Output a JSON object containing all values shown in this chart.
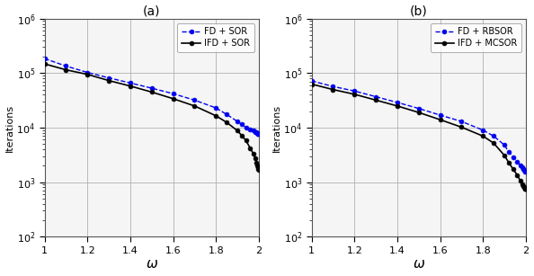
{
  "subplot_a": {
    "title": "(a)",
    "xlabel": "ω",
    "ylabel": "Iterations",
    "legend": [
      "FD + SOR",
      "IFD + SOR"
    ],
    "fd_sor_omega": [
      1.0,
      1.1,
      1.2,
      1.3,
      1.4,
      1.5,
      1.6,
      1.7,
      1.8,
      1.85,
      1.9,
      1.92,
      1.94,
      1.96,
      1.975,
      1.985,
      1.99,
      1.993,
      1.996,
      1.998
    ],
    "fd_sor_iter": [
      185000,
      135000,
      103000,
      82000,
      66000,
      53000,
      42000,
      32000,
      23000,
      17500,
      13000,
      11500,
      10000,
      9200,
      8800,
      8400,
      8200,
      8000,
      7800,
      7600
    ],
    "ifd_sor_omega": [
      1.0,
      1.1,
      1.2,
      1.3,
      1.4,
      1.5,
      1.6,
      1.7,
      1.8,
      1.85,
      1.9,
      1.92,
      1.94,
      1.96,
      1.975,
      1.985,
      1.99,
      1.993,
      1.996,
      1.998,
      1.999
    ],
    "ifd_sor_iter": [
      148000,
      115000,
      95000,
      73000,
      58000,
      45000,
      34000,
      25000,
      16500,
      12500,
      8800,
      7200,
      5800,
      4200,
      3300,
      2700,
      2300,
      2000,
      1850,
      1750,
      1700
    ]
  },
  "subplot_b": {
    "title": "(b)",
    "xlabel": "ω",
    "ylabel": "Iterations",
    "legend": [
      "FD + RBSOR",
      "IFD + MCSOR"
    ],
    "fd_rbsor_omega": [
      1.0,
      1.1,
      1.2,
      1.3,
      1.4,
      1.5,
      1.6,
      1.7,
      1.8,
      1.85,
      1.9,
      1.92,
      1.94,
      1.96,
      1.975,
      1.985,
      1.99,
      1.993,
      1.996,
      1.998
    ],
    "fd_rbsor_iter": [
      72000,
      57000,
      47000,
      37000,
      29000,
      22500,
      17000,
      13000,
      9000,
      7000,
      4800,
      3600,
      2900,
      2400,
      2050,
      1850,
      1750,
      1680,
      1620,
      1580
    ],
    "ifd_mcsor_omega": [
      1.0,
      1.1,
      1.2,
      1.3,
      1.4,
      1.5,
      1.6,
      1.7,
      1.8,
      1.85,
      1.9,
      1.92,
      1.94,
      1.96,
      1.975,
      1.985,
      1.99,
      1.993,
      1.996,
      1.998,
      1.999
    ],
    "ifd_mcsor_iter": [
      63000,
      50000,
      41000,
      32000,
      25000,
      19000,
      14000,
      10200,
      7000,
      5200,
      3100,
      2300,
      1750,
      1350,
      1050,
      900,
      840,
      800,
      770,
      760,
      750
    ]
  },
  "blue_color": "#0000ee",
  "black_color": "#000000",
  "ylim": [
    100,
    1000000
  ],
  "xlim": [
    1.0,
    2.0
  ],
  "xticks": [
    1.0,
    1.2,
    1.4,
    1.6,
    1.8,
    2.0
  ],
  "yticks": [
    100,
    1000,
    10000,
    100000,
    1000000
  ],
  "grid_color": "#b0b0b0",
  "bg_color": "#f5f5f5"
}
